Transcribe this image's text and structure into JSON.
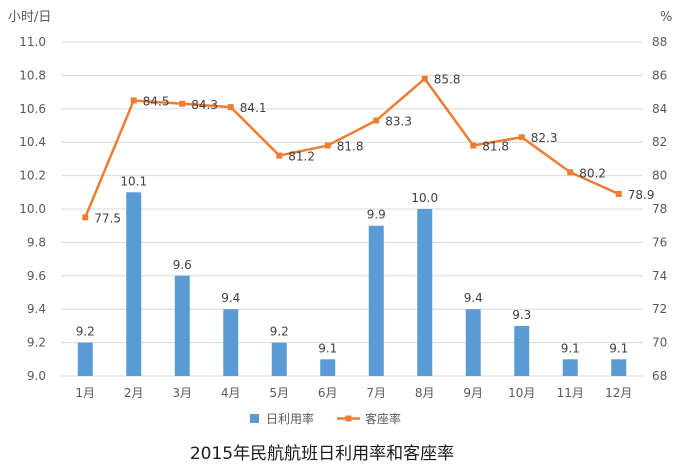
{
  "chart_data": {
    "type": "bar",
    "title": "2015年民航航班日利用率和客座率",
    "categories": [
      "1月",
      "2月",
      "3月",
      "4月",
      "5月",
      "6月",
      "7月",
      "8月",
      "9月",
      "10月",
      "11月",
      "12月"
    ],
    "series": [
      {
        "name": "日利用率",
        "type": "bar",
        "axis": "left",
        "color": "#5b9bd5",
        "values": [
          9.2,
          10.1,
          9.6,
          9.4,
          9.2,
          9.1,
          9.9,
          10.0,
          9.4,
          9.3,
          9.1,
          9.1
        ]
      },
      {
        "name": "客座率",
        "type": "line",
        "axis": "right",
        "color": "#ed7d31",
        "values": [
          77.5,
          84.5,
          84.3,
          84.1,
          81.2,
          81.8,
          83.3,
          85.8,
          81.8,
          82.3,
          80.2,
          78.9
        ]
      }
    ],
    "y_left": {
      "label": "小时/日",
      "range": [
        9.0,
        11.0
      ],
      "ticks": [
        "9.0",
        "9.2",
        "9.4",
        "9.6",
        "9.8",
        "10.0",
        "10.2",
        "10.4",
        "10.6",
        "10.8",
        "11.0"
      ]
    },
    "y_right": {
      "label": "%",
      "range": [
        68,
        88
      ],
      "ticks": [
        "68",
        "70",
        "72",
        "74",
        "76",
        "78",
        "80",
        "82",
        "84",
        "86",
        "88"
      ]
    },
    "grid": true,
    "legend_position": "bottom",
    "data_labels": true
  }
}
